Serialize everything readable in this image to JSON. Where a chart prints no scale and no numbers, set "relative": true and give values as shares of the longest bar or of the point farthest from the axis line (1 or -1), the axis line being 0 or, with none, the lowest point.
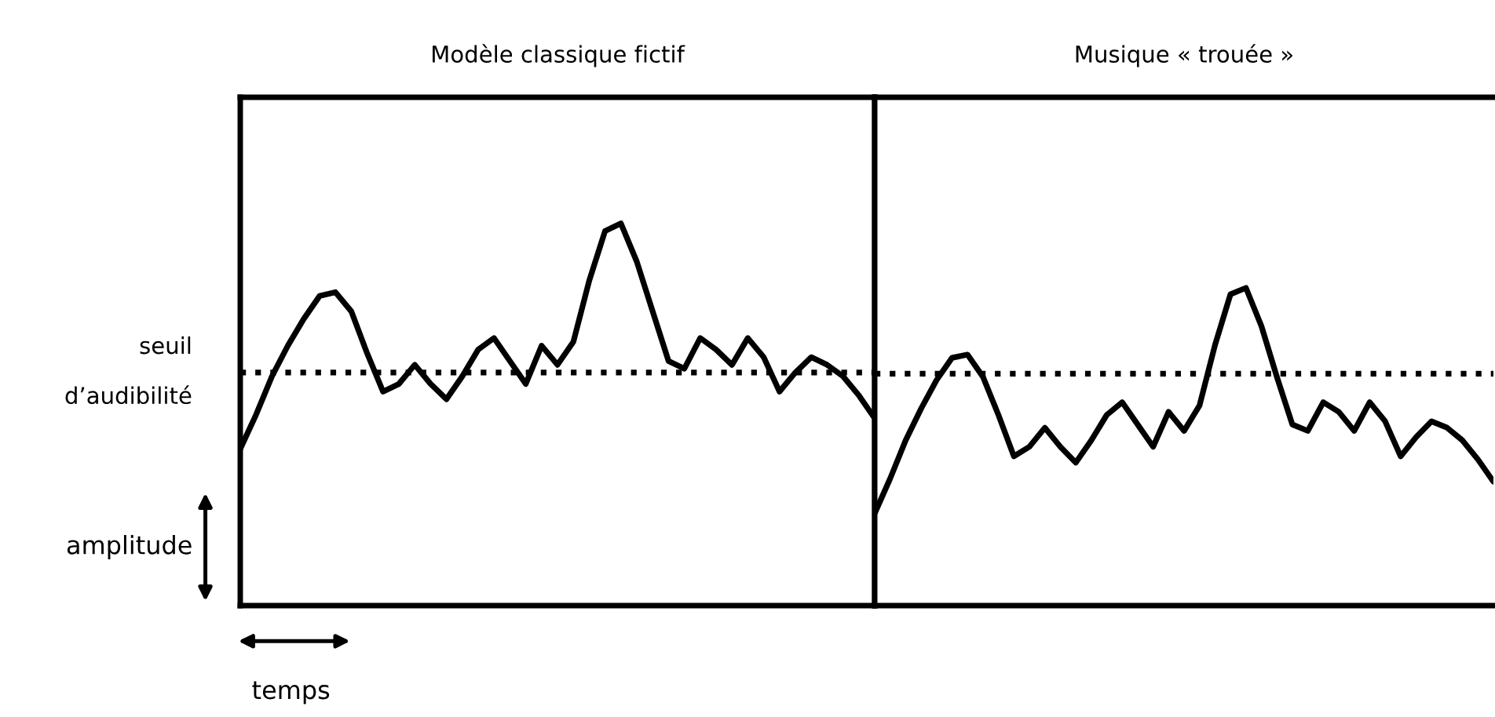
{
  "chart_data": [
    {
      "type": "line",
      "title": "Modèle classique fictif",
      "xlabel": "temps",
      "ylabel": "amplitude",
      "relative": true,
      "line_style": "solid",
      "marker": "none",
      "categories": [
        null,
        null,
        null,
        null,
        null,
        null,
        null,
        null,
        null,
        null,
        null,
        null,
        null,
        null,
        null,
        null,
        null,
        null,
        null,
        null,
        null,
        null,
        null,
        null,
        null,
        null,
        null,
        null,
        null,
        null,
        null,
        null,
        null,
        null,
        null,
        null,
        null,
        null,
        null,
        null,
        null
      ],
      "series": [
        {
          "color": "#000000",
          "values": [
            0.41,
            0.5,
            0.6,
            0.68,
            0.75,
            0.81,
            0.82,
            0.77,
            0.66,
            0.56,
            0.58,
            0.63,
            0.58,
            0.54,
            0.6,
            0.67,
            0.7,
            0.64,
            0.58,
            0.68,
            0.63,
            0.69,
            0.85,
            0.98,
            1.0,
            0.9,
            0.77,
            0.64,
            0.62,
            0.7,
            0.67,
            0.63,
            0.7,
            0.65,
            0.56,
            0.61,
            0.65,
            0.63,
            0.6,
            0.55,
            0.49
          ]
        }
      ],
      "ref_lines": [
        {
          "axis": "y",
          "value": 0.61,
          "label": "seuil\nd’audibilité",
          "color": "#000000",
          "line_style": "dotted"
        }
      ]
    },
    {
      "type": "line",
      "title": "Musique « trouée »",
      "relative": true,
      "line_style": "solid",
      "marker": "none",
      "categories": [
        null,
        null,
        null,
        null,
        null,
        null,
        null,
        null,
        null,
        null,
        null,
        null,
        null,
        null,
        null,
        null,
        null,
        null,
        null,
        null,
        null,
        null,
        null,
        null,
        null,
        null,
        null,
        null,
        null,
        null,
        null,
        null,
        null,
        null,
        null,
        null,
        null,
        null,
        null,
        null,
        null
      ],
      "series": [
        {
          "color": "#000000",
          "values": [
            0.29,
            0.4,
            0.52,
            0.62,
            0.71,
            0.78,
            0.79,
            0.72,
            0.6,
            0.47,
            0.5,
            0.56,
            0.5,
            0.45,
            0.52,
            0.6,
            0.64,
            0.57,
            0.5,
            0.61,
            0.55,
            0.63,
            0.82,
            0.98,
            1.0,
            0.88,
            0.72,
            0.57,
            0.55,
            0.64,
            0.61,
            0.55,
            0.64,
            0.58,
            0.47,
            0.53,
            0.58,
            0.56,
            0.52,
            0.46,
            0.39
          ]
        }
      ],
      "ref_lines": [
        {
          "axis": "y",
          "value": 0.73,
          "color": "#000000",
          "line_style": "dotted"
        }
      ]
    }
  ]
}
